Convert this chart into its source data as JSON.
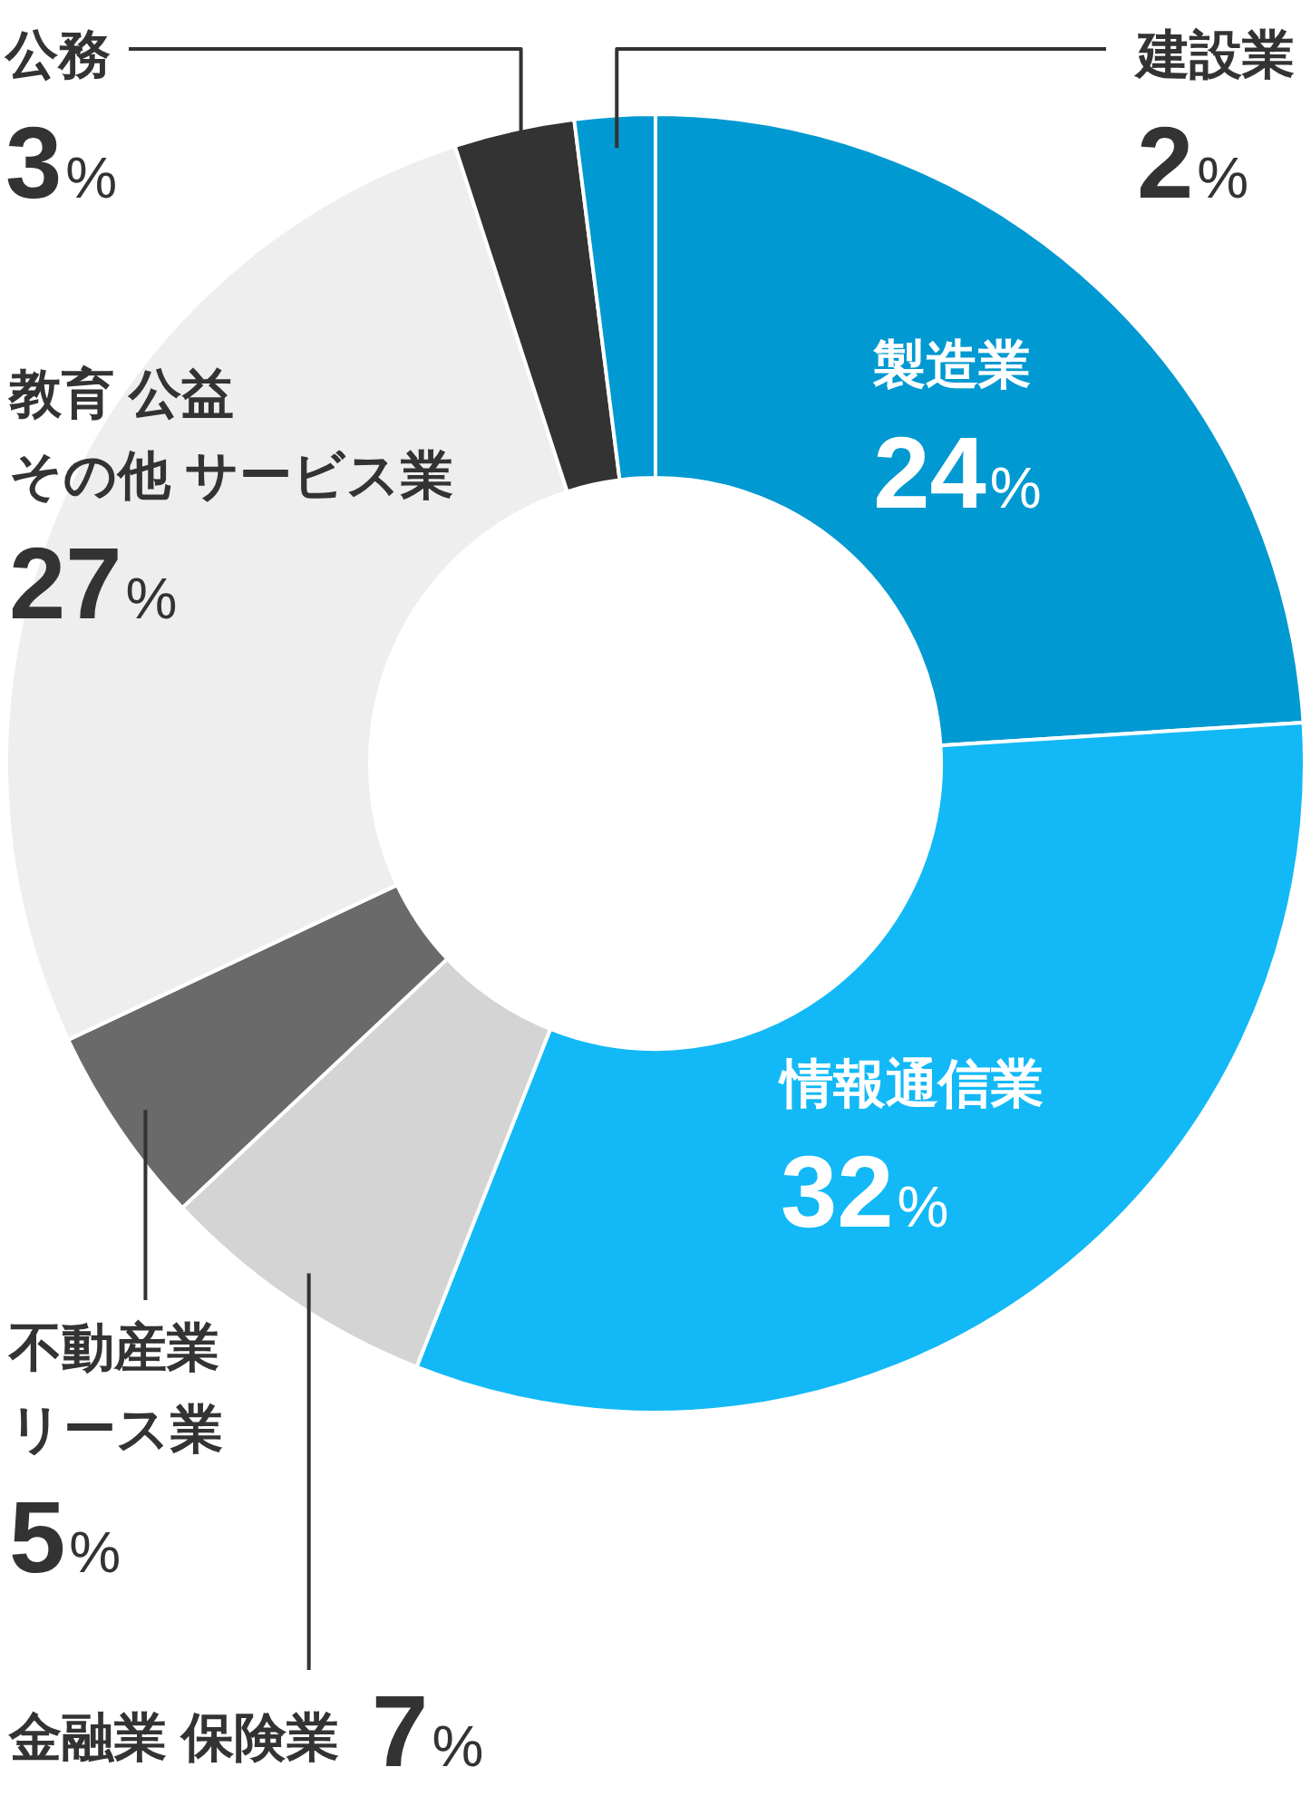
{
  "chart_data": {
    "type": "donut",
    "categories": [
      "製造業",
      "情報通信業",
      "金融業 保険業",
      "不動産業リース業",
      "教育 公益その他 サービス業",
      "公務",
      "建設業"
    ],
    "values": [
      24,
      32,
      7,
      5,
      27,
      3,
      2
    ],
    "colors": [
      "#0099d1",
      "#12b9f6",
      "#d4d4d4",
      "#6a6a6a",
      "#eeeeee",
      "#333333",
      "#0099d1"
    ],
    "value_labels": [
      "24%",
      "32%",
      "7%",
      "5%",
      "27%",
      "3%",
      "2%"
    ]
  }
}
